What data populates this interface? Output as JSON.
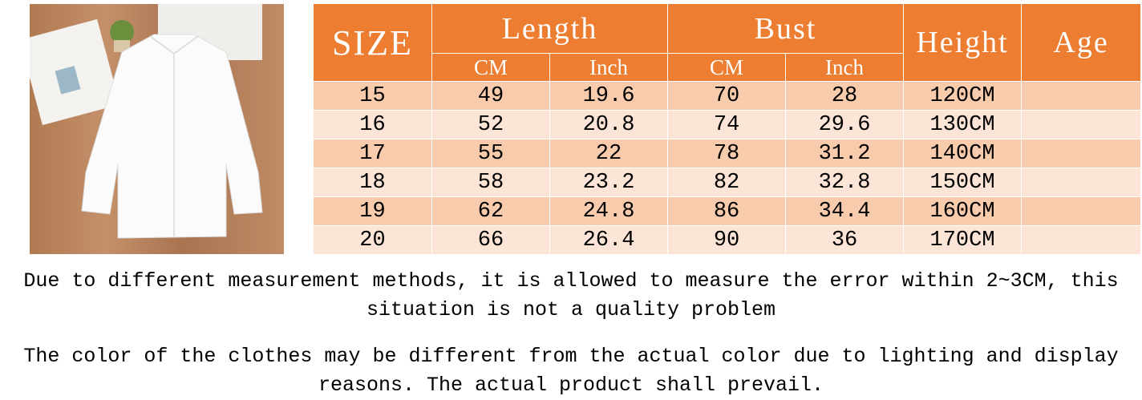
{
  "photo": {
    "description_icon": "white-blouse-photo"
  },
  "table": {
    "headers": {
      "size": "SIZE",
      "length": "Length",
      "bust": "Bust",
      "height": "Height",
      "age": "Age",
      "cm": "CM",
      "inch": "Inch"
    },
    "rows": [
      {
        "size": "15",
        "length_cm": "49",
        "length_inch": "19.6",
        "bust_cm": "70",
        "bust_inch": "28",
        "height": "120CM",
        "age": ""
      },
      {
        "size": "16",
        "length_cm": "52",
        "length_inch": "20.8",
        "bust_cm": "74",
        "bust_inch": "29.6",
        "height": "130CM",
        "age": ""
      },
      {
        "size": "17",
        "length_cm": "55",
        "length_inch": "22",
        "bust_cm": "78",
        "bust_inch": "31.2",
        "height": "140CM",
        "age": ""
      },
      {
        "size": "18",
        "length_cm": "58",
        "length_inch": "23.2",
        "bust_cm": "82",
        "bust_inch": "32.8",
        "height": "150CM",
        "age": ""
      },
      {
        "size": "19",
        "length_cm": "62",
        "length_inch": "24.8",
        "bust_cm": "86",
        "bust_inch": "34.4",
        "height": "160CM",
        "age": ""
      },
      {
        "size": "20",
        "length_cm": "66",
        "length_inch": "26.4",
        "bust_cm": "90",
        "bust_inch": "36",
        "height": "170CM",
        "age": ""
      }
    ],
    "colors": {
      "header": "#ED7D31",
      "row_odd": "#F8CBAD",
      "row_even": "#FCE4D6"
    }
  },
  "notes": {
    "measurement": "Due to different measurement methods, it is allowed to measure the error within 2~3CM, this situation is not a quality problem",
    "color": "The color of the clothes may be different from the actual color due to lighting and display reasons. The actual product shall prevail."
  }
}
